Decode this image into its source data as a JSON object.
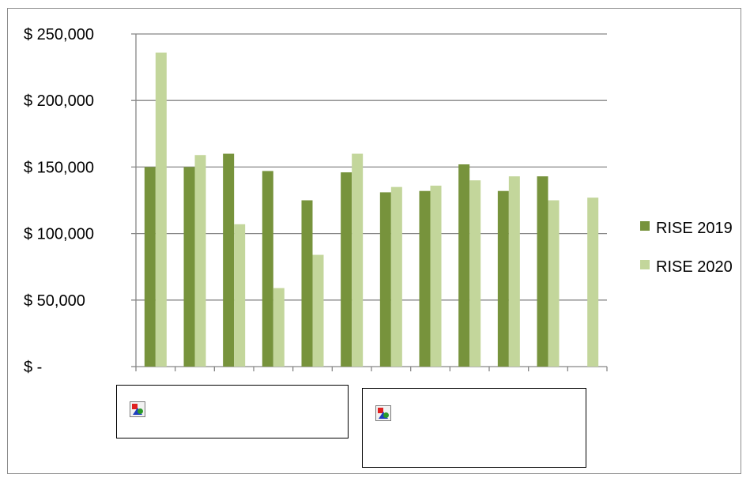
{
  "chart_data": {
    "type": "bar",
    "categories": [
      "",
      "",
      "",
      "",
      "",
      "",
      "",
      "",
      "",
      "",
      "",
      ""
    ],
    "series": [
      {
        "name": "RISE 2019",
        "values": [
          150000,
          150000,
          160000,
          147000,
          125000,
          146000,
          131000,
          132000,
          152000,
          132000,
          143000,
          null
        ]
      },
      {
        "name": "RISE 2020",
        "values": [
          236000,
          159000,
          107000,
          59000,
          84000,
          160000,
          135000,
          136000,
          140000,
          143000,
          125000,
          127000
        ]
      }
    ],
    "ylim": [
      0,
      250000
    ],
    "yticks": [
      0,
      50000,
      100000,
      150000,
      200000,
      250000
    ],
    "ytick_labels": [
      "$ -",
      "$ 50,000",
      "$ 100,000",
      "$ 150,000",
      "$ 200,000",
      "$ 250,000"
    ],
    "title": "",
    "xlabel": "",
    "ylabel": "",
    "grid": true,
    "legend_position": "right"
  },
  "colors": {
    "series": [
      "#77933c",
      "#c3d69b"
    ],
    "gridline": "#868686",
    "axis": "#868686"
  },
  "placeholders": {
    "icon": "broken-image-icon"
  }
}
